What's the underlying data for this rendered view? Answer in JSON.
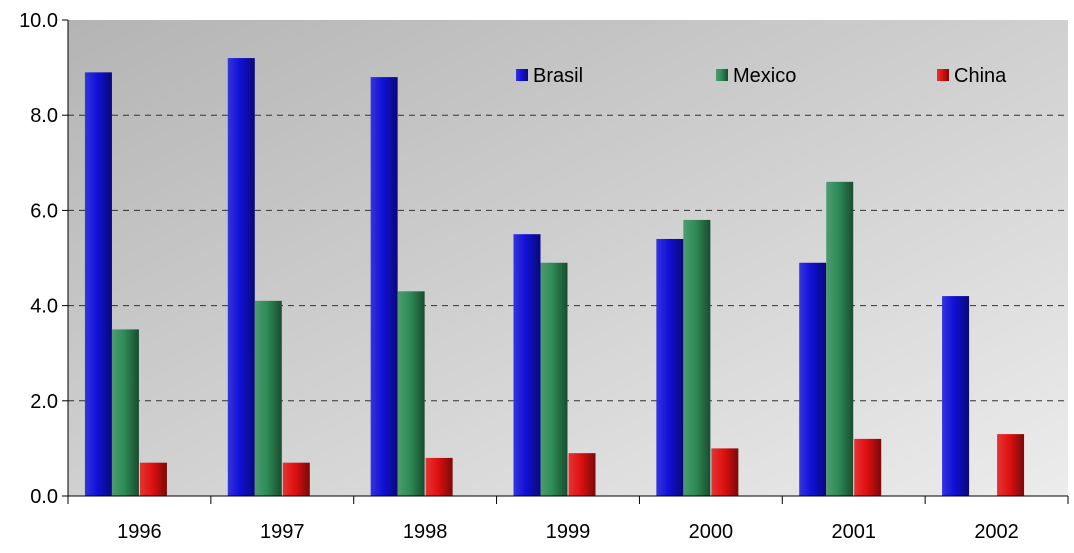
{
  "chart_data": {
    "type": "bar",
    "title": "",
    "xlabel": "",
    "ylabel": "",
    "categories": [
      "1996",
      "1997",
      "1998",
      "1999",
      "2000",
      "2001",
      "2002"
    ],
    "series": [
      {
        "name": "Brasil",
        "color": "#1010d8",
        "values": [
          8.9,
          9.2,
          8.8,
          5.5,
          5.4,
          4.9,
          4.2
        ]
      },
      {
        "name": "Mexico",
        "color": "#2e8b57",
        "values": [
          3.5,
          4.1,
          4.3,
          4.9,
          5.8,
          6.6,
          null
        ]
      },
      {
        "name": "China",
        "color": "#e01010",
        "values": [
          0.7,
          0.7,
          0.8,
          0.9,
          1.0,
          1.2,
          1.3
        ]
      }
    ],
    "ylim": [
      0,
      10
    ],
    "yticks": [
      "0.0",
      "2.0",
      "4.0",
      "6.0",
      "8.0",
      "10.0"
    ],
    "grid": "horizontal-dashed",
    "legend_position": "top-right"
  }
}
